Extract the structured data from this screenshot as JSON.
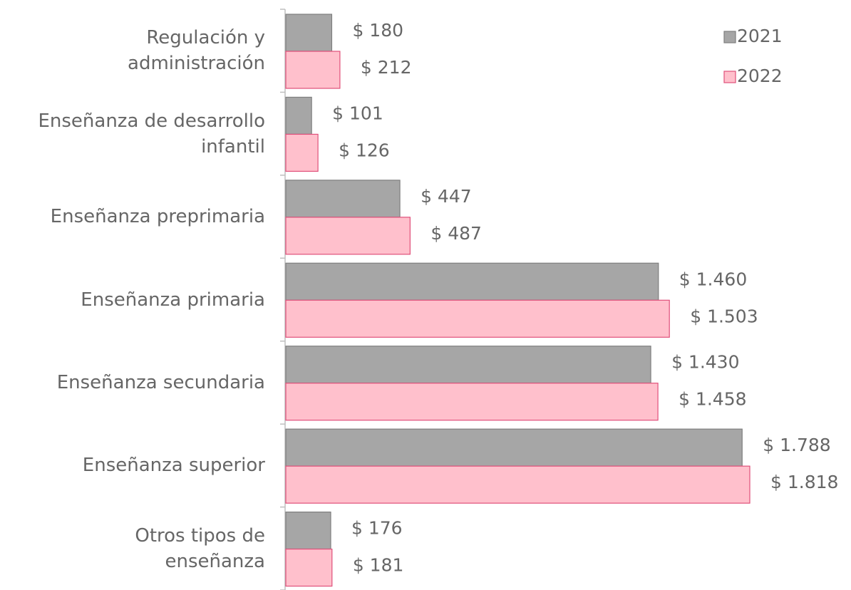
{
  "chart_data": {
    "type": "bar",
    "orientation": "horizontal",
    "categories": [
      "Regulación y\nadministración",
      "Enseñanza de desarrollo\ninfantil",
      "Enseñanza preprimaria",
      "Enseñanza primaria",
      "Enseñanza secundaria",
      "Enseñanza superior",
      "Otros tipos de\nenseñanza"
    ],
    "series": [
      {
        "name": "2021",
        "color": "#a6a6a6",
        "values": [
          180,
          101,
          447,
          1460,
          1430,
          1788,
          176
        ],
        "value_labels": [
          "$ 180",
          "$ 101",
          "$ 447",
          "$ 1.460",
          "$ 1.430",
          "$ 1.788",
          "$ 176"
        ]
      },
      {
        "name": "2022",
        "color": "#ffc0cc",
        "values": [
          212,
          126,
          487,
          1503,
          1458,
          1818,
          181
        ],
        "value_labels": [
          "$ 212",
          "$ 126",
          "$ 487",
          "$ 1.503",
          "$ 1.458",
          "$ 1.818",
          "$ 181"
        ]
      }
    ],
    "legend": "top-right"
  }
}
